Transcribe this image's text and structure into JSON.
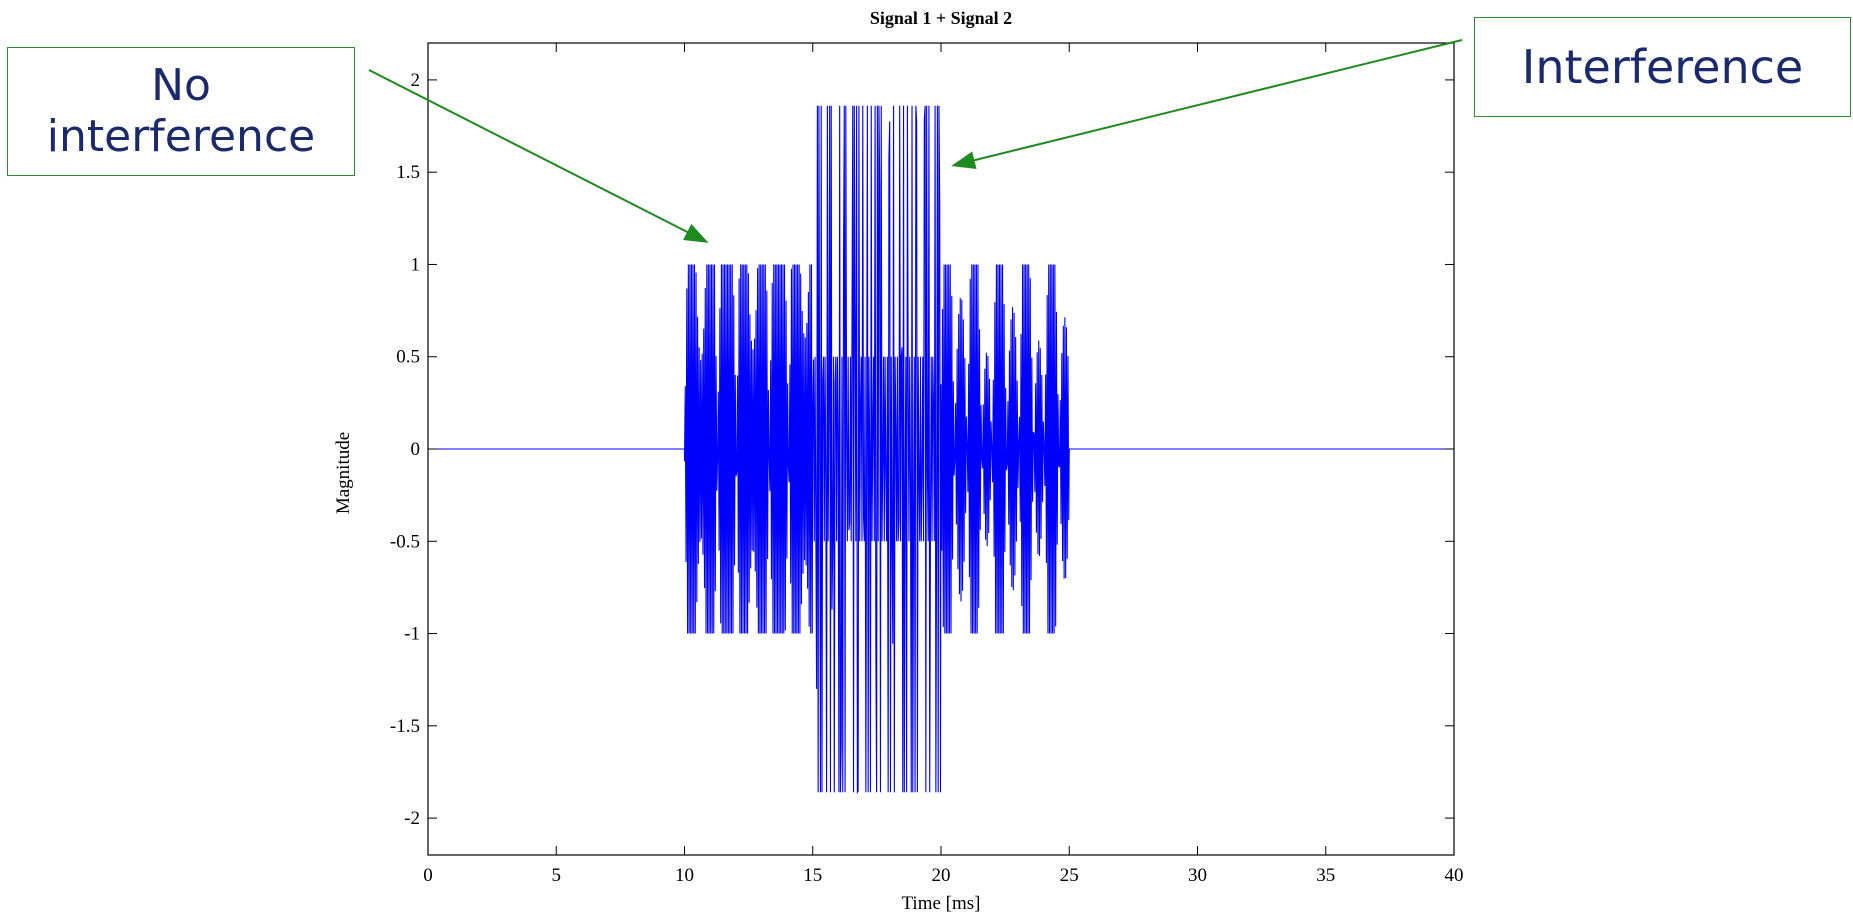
{
  "chart_data": {
    "type": "line",
    "title": "Signal 1 + Signal 2",
    "xlabel": "Time [ms]",
    "ylabel": "Magnitude",
    "xlim": [
      0,
      40
    ],
    "ylim": [
      -2.2,
      2.2
    ],
    "xticks": [
      "0",
      "5",
      "10",
      "15",
      "20",
      "25",
      "30",
      "35",
      "40"
    ],
    "yticks": [
      "2",
      "1.5",
      "1",
      "0.5",
      "0",
      "-0.5",
      "-1",
      "-1.5",
      "-2"
    ],
    "grid": false,
    "legend": "none",
    "series": [
      {
        "segments": [
          {
            "x_start": 0,
            "x_end": 10,
            "kind": "zero"
          },
          {
            "x_start": 10,
            "x_end": 15,
            "kind": "oscillation",
            "amplitude": 1
          },
          {
            "x_start": 15,
            "x_end": 20,
            "kind": "interference",
            "amplitude_peak": 1.86,
            "amplitude_inner": 0.5
          },
          {
            "x_start": 20,
            "x_end": 25,
            "kind": "oscillation",
            "amplitude": 1
          },
          {
            "x_start": 25,
            "x_end": 40,
            "kind": "zero"
          }
        ]
      }
    ],
    "annotations": [
      {
        "text": "No interference",
        "points_to": {
          "x": 10.9,
          "y": 1.12
        }
      },
      {
        "text": "Interference",
        "points_to": {
          "x": 20.6,
          "y": 1.55
        }
      }
    ],
    "colors": {
      "line": "#0000ff",
      "annotation": "#1f8a1f",
      "annotation_text": "#1a2a6c"
    }
  }
}
